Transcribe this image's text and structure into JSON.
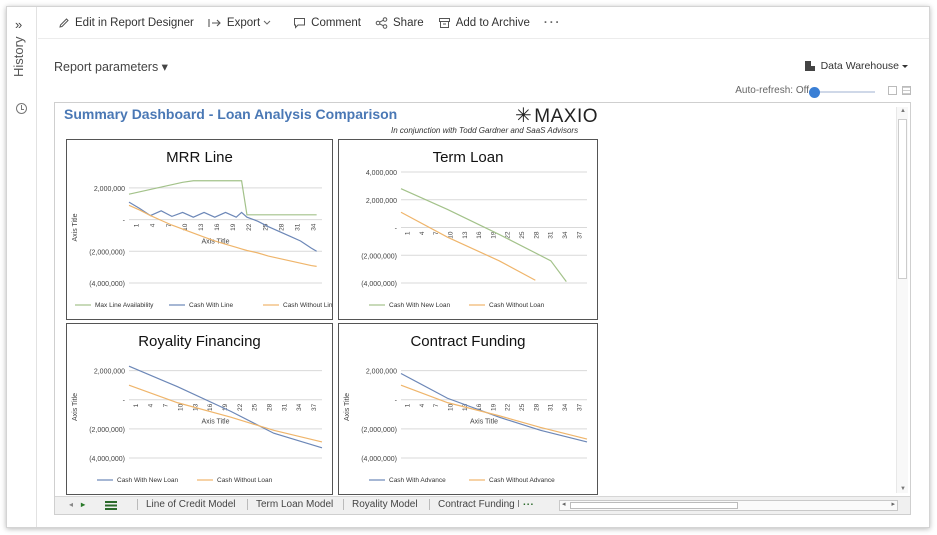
{
  "history": {
    "label": "History",
    "expand": "»"
  },
  "toolbar": {
    "edit": "Edit in Report Designer",
    "export": "Export",
    "comment": "Comment",
    "share": "Share",
    "archive": "Add to Archive",
    "more": "···"
  },
  "params": {
    "label": "Report parameters ▾"
  },
  "datasource": {
    "label": "Data Warehouse"
  },
  "autorefresh": {
    "label": "Auto-refresh: Off"
  },
  "dashboard": {
    "title": "Summary Dashboard - Loan Analysis Comparison",
    "logo": "MAXIO",
    "subtitle": "In conjunction with Todd Gardner and SaaS Advisors"
  },
  "colors": {
    "green": "#a3c28a",
    "blue": "#6c87b7",
    "orange": "#efb56b",
    "title": "#4a78b5"
  },
  "chart_data": [
    {
      "type": "line",
      "title": "MRR Line",
      "xlabel": "Axis Title",
      "ylabel": "Axis Title",
      "yticks": [
        "2,000,000",
        "-",
        "(2,000,000)",
        "(4,000,000)"
      ],
      "ylim": [
        -4000000,
        3000000
      ],
      "xticks": [
        "1",
        "4",
        "7",
        "10",
        "13",
        "16",
        "19",
        "22",
        "25",
        "28",
        "31",
        "34"
      ],
      "x": [
        1,
        3,
        5,
        7,
        9,
        11,
        13,
        15,
        17,
        19,
        21,
        22,
        23,
        25,
        27,
        29,
        31,
        33,
        35,
        36
      ],
      "series": [
        {
          "name": "Max Line Availability",
          "color": "#a3c28a",
          "values": [
            1600000,
            1750000,
            1900000,
            2050000,
            2200000,
            2350000,
            2450000,
            2450000,
            2450000,
            2450000,
            2450000,
            2450000,
            300000,
            300000,
            300000,
            300000,
            300000,
            300000,
            300000,
            300000
          ]
        },
        {
          "name": "Cash With Line",
          "color": "#6c87b7",
          "values": [
            1100000,
            700000,
            250000,
            550000,
            200000,
            450000,
            150000,
            450000,
            150000,
            450000,
            150000,
            450000,
            150000,
            -100000,
            -450000,
            -750000,
            -1050000,
            -1350000,
            -1800000,
            -2000000
          ]
        },
        {
          "name": "Cash Without Line",
          "color": "#efb56b",
          "values": [
            900000,
            600000,
            250000,
            -50000,
            -350000,
            -600000,
            -850000,
            -1100000,
            -1350000,
            -1550000,
            -1750000,
            -1850000,
            -1950000,
            -2100000,
            -2300000,
            -2450000,
            -2600000,
            -2750000,
            -2900000,
            -2950000
          ]
        }
      ]
    },
    {
      "type": "line",
      "title": "Term Loan",
      "yticks": [
        "4,000,000",
        "2,000,000",
        "-",
        "(2,000,000)",
        "(4,000,000)"
      ],
      "ylim": [
        -4000000,
        4000000
      ],
      "xticks": [
        "1",
        "4",
        "7",
        "10",
        "13",
        "16",
        "19",
        "22",
        "25",
        "28",
        "31",
        "34",
        "37"
      ],
      "x": [
        1,
        37
      ],
      "series": [
        {
          "name": "Cash With New Loan",
          "color": "#a3c28a",
          "values_sparse": [
            [
              1,
              2800000
            ],
            [
              10,
              1300000
            ],
            [
              20,
              -500000
            ],
            [
              30,
              -2400000
            ],
            [
              33,
              -3900000
            ]
          ]
        },
        {
          "name": "Cash Without Loan",
          "color": "#efb56b",
          "values_sparse": [
            [
              1,
              1100000
            ],
            [
              10,
              -700000
            ],
            [
              20,
              -2400000
            ],
            [
              27,
              -3800000
            ]
          ]
        }
      ]
    },
    {
      "type": "line",
      "title": "Royality Financing",
      "xlabel": "Axis Title",
      "ylabel": "Axis Title",
      "yticks": [
        "2,000,000",
        "-",
        "(2,000,000)",
        "(4,000,000)"
      ],
      "ylim": [
        -4000000,
        3000000
      ],
      "xticks": [
        "1",
        "4",
        "7",
        "10",
        "13",
        "16",
        "19",
        "22",
        "25",
        "28",
        "31",
        "34",
        "37"
      ],
      "series": [
        {
          "name": "Cash With New Loan",
          "color": "#6c87b7",
          "values_sparse": [
            [
              1,
              2300000
            ],
            [
              10,
              900000
            ],
            [
              20,
              -800000
            ],
            [
              28,
              -2300000
            ],
            [
              37,
              -3300000
            ]
          ]
        },
        {
          "name": "Cash Without Loan",
          "color": "#efb56b",
          "values_sparse": [
            [
              1,
              1000000
            ],
            [
              10,
              -200000
            ],
            [
              20,
              -1200000
            ],
            [
              28,
              -2100000
            ],
            [
              37,
              -2900000
            ]
          ]
        }
      ]
    },
    {
      "type": "line",
      "title": "Contract Funding",
      "xlabel": "Axis Title",
      "ylabel": "Axis Title",
      "yticks": [
        "2,000,000",
        "-",
        "(2,000,000)",
        "(4,000,000)"
      ],
      "ylim": [
        -4000000,
        3000000
      ],
      "xticks": [
        "1",
        "4",
        "7",
        "10",
        "13",
        "16",
        "19",
        "22",
        "25",
        "28",
        "31",
        "34",
        "37"
      ],
      "series": [
        {
          "name": "Cash With Advance",
          "color": "#6c87b7",
          "values_sparse": [
            [
              1,
              1800000
            ],
            [
              10,
              100000
            ],
            [
              20,
              -1200000
            ],
            [
              28,
              -2100000
            ],
            [
              37,
              -2900000
            ]
          ]
        },
        {
          "name": "Cash Without Advance",
          "color": "#efb56b",
          "values_sparse": [
            [
              1,
              1000000
            ],
            [
              10,
              -200000
            ],
            [
              20,
              -1100000
            ],
            [
              28,
              -1900000
            ],
            [
              37,
              -2700000
            ]
          ]
        }
      ]
    }
  ],
  "tabs": {
    "items": [
      "Line of Credit Model",
      "Term Loan Model",
      "Royality Model",
      "Contract Funding N"
    ],
    "more": "..."
  }
}
